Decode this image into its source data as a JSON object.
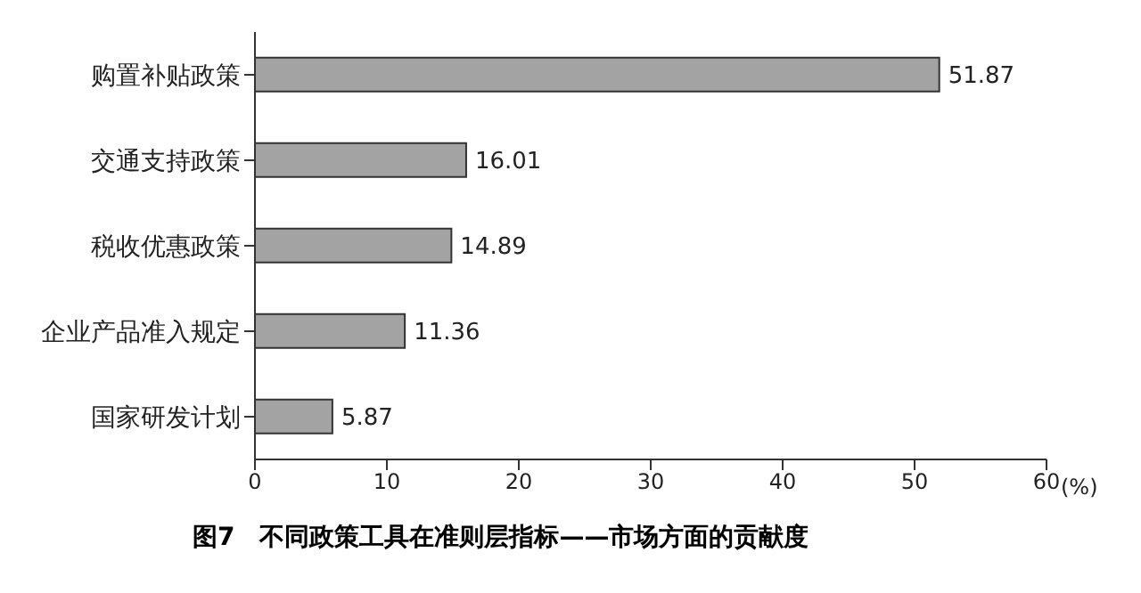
{
  "chart_data": {
    "type": "bar",
    "orientation": "horizontal",
    "title": "图7　不同政策工具在准则层指标——市场方面的贡献度",
    "xlabel": "(%)",
    "categories": [
      "购置补贴政策",
      "交通支持政策",
      "税收优惠政策",
      "企业产品准入规定",
      "国家研发计划"
    ],
    "values": [
      51.87,
      16.01,
      14.89,
      11.36,
      5.87
    ],
    "color": "#a3a3a3",
    "xlim": [
      0,
      60
    ],
    "xticks": [
      0,
      10,
      20,
      30,
      40,
      50,
      60
    ],
    "grid": false,
    "data_labels": true
  }
}
